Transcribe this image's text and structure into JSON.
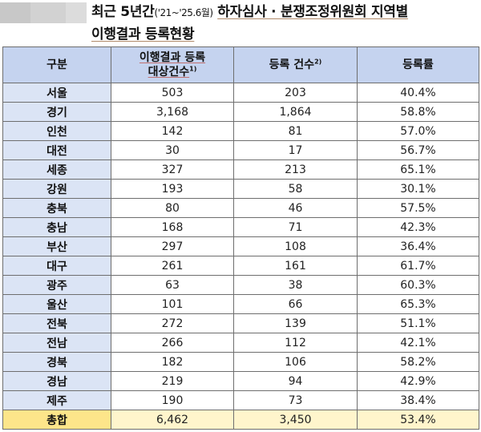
{
  "title": {
    "part1": "최근 5년간",
    "period": "('21~'25.6월)",
    "part2": "하자심사 · 분쟁조정위원회 지역별",
    "line2": "이행결과 등록현황"
  },
  "table": {
    "headers": {
      "region": "구분",
      "target_line1": "이행결과 등록",
      "target_line2": "대상건수",
      "target_note": "1)",
      "registered": "등록 건수",
      "registered_note": "2)",
      "rate": "등록률"
    },
    "rows": [
      {
        "region": "서울",
        "target": "503",
        "registered": "203",
        "rate": "40.4%"
      },
      {
        "region": "경기",
        "target": "3,168",
        "registered": "1,864",
        "rate": "58.8%"
      },
      {
        "region": "인천",
        "target": "142",
        "registered": "81",
        "rate": "57.0%"
      },
      {
        "region": "대전",
        "target": "30",
        "registered": "17",
        "rate": "56.7%"
      },
      {
        "region": "세종",
        "target": "327",
        "registered": "213",
        "rate": "65.1%"
      },
      {
        "region": "강원",
        "target": "193",
        "registered": "58",
        "rate": "30.1%"
      },
      {
        "region": "충북",
        "target": "80",
        "registered": "46",
        "rate": "57.5%"
      },
      {
        "region": "충남",
        "target": "168",
        "registered": "71",
        "rate": "42.3%"
      },
      {
        "region": "부산",
        "target": "297",
        "registered": "108",
        "rate": "36.4%"
      },
      {
        "region": "대구",
        "target": "261",
        "registered": "161",
        "rate": "61.7%"
      },
      {
        "region": "광주",
        "target": "63",
        "registered": "38",
        "rate": "60.3%"
      },
      {
        "region": "울산",
        "target": "101",
        "registered": "66",
        "rate": "65.3%"
      },
      {
        "region": "전북",
        "target": "272",
        "registered": "139",
        "rate": "51.1%"
      },
      {
        "region": "전남",
        "target": "266",
        "registered": "112",
        "rate": "42.1%"
      },
      {
        "region": "경북",
        "target": "182",
        "registered": "106",
        "rate": "58.2%"
      },
      {
        "region": "경남",
        "target": "219",
        "registered": "94",
        "rate": "42.9%"
      },
      {
        "region": "제주",
        "target": "190",
        "registered": "73",
        "rate": "38.4%"
      }
    ],
    "total": {
      "region": "총합",
      "target": "6,462",
      "registered": "3,450",
      "rate": "53.4%"
    }
  },
  "colors": {
    "header_bg": "#c5d3ef",
    "region_bg": "#dbe4f5",
    "total_region_bg": "#fde58a",
    "total_bg": "#fff5cc",
    "border": "#6e6e6e"
  }
}
